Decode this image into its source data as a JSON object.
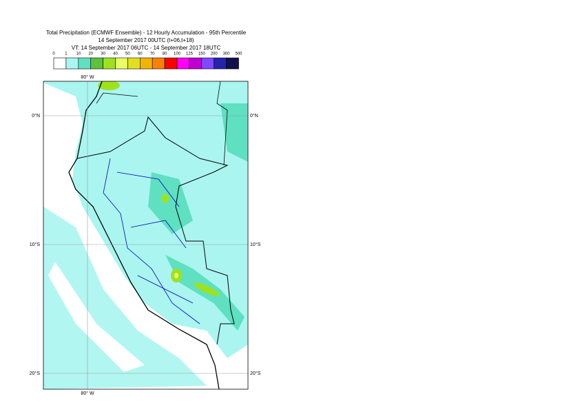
{
  "title": {
    "line1": "Total Precipitation (ECMWF Ensemble) - 12 Hourly Accumulation - 95th Percentile",
    "line2": "14 September 2017 00UTC (t+06,t+18)",
    "line3": "VT: 14 September 2017 06UTC - 14 September 2017 18UTC"
  },
  "legend": {
    "levels": [
      0,
      1,
      10,
      20,
      30,
      40,
      50,
      60,
      70,
      80,
      100,
      125,
      150,
      200,
      300,
      500
    ],
    "colors": [
      "#ffffff",
      "#aaf5f0",
      "#5fe0c0",
      "#5cc23c",
      "#9ee21e",
      "#e8ff66",
      "#e0e020",
      "#f2b400",
      "#ff8000",
      "#ff0000",
      "#ff00ff",
      "#c000d0",
      "#8048ff",
      "#2424b0",
      "#10104e"
    ]
  },
  "grid_labels": {
    "top": "80° W",
    "bottom": "80° W",
    "left": [
      "0°N",
      "10°S",
      "20°S"
    ],
    "right": [
      "0°N",
      "10°S",
      "20°S"
    ]
  }
}
